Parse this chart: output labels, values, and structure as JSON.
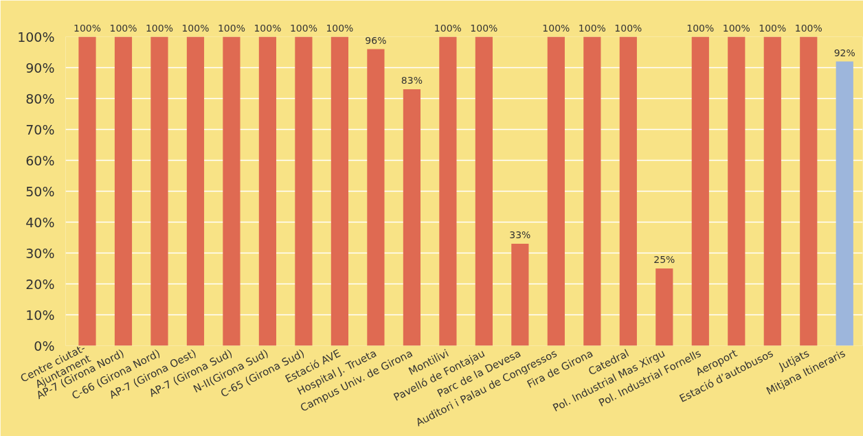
{
  "chart_data": {
    "type": "bar",
    "categories": [
      "Centre ciutat-\nAjuntament",
      "AP-7 (Girona Nord)",
      "C-66 (Girona Nord)",
      "AP-7 (Girona Oest)",
      "AP-7 (Girona Sud)",
      "N-II(Girona Sud)",
      "C-65 (Girona Sud)",
      "Estació AVE",
      "Hospital J. Trueta",
      "Campus Univ. de Girona",
      "Montilivi",
      "Pavelló de Fontajau",
      "Parc de la Devesa",
      "Auditori i Palau de Congressos",
      "Fira de Girona",
      "Catedral",
      "Pol. Industrial Mas Xirgu",
      "Pol. Industrial Fornells",
      "Aeroport",
      "Estació d’autobusos",
      "Jutjats",
      "Mitjana Itineraris"
    ],
    "values": [
      100,
      100,
      100,
      100,
      100,
      100,
      100,
      100,
      96,
      83,
      100,
      100,
      33,
      100,
      100,
      100,
      25,
      100,
      100,
      100,
      100,
      92
    ],
    "colors": [
      "#df6a52",
      "#df6a52",
      "#df6a52",
      "#df6a52",
      "#df6a52",
      "#df6a52",
      "#df6a52",
      "#df6a52",
      "#df6a52",
      "#df6a52",
      "#df6a52",
      "#df6a52",
      "#df6a52",
      "#df6a52",
      "#df6a52",
      "#df6a52",
      "#df6a52",
      "#df6a52",
      "#df6a52",
      "#df6a52",
      "#df6a52",
      "#9db6dc"
    ],
    "value_labels": [
      "100%",
      "100%",
      "100%",
      "100%",
      "100%",
      "100%",
      "100%",
      "100%",
      "96%",
      "83%",
      "100%",
      "100%",
      "33%",
      "100%",
      "100%",
      "100%",
      "25%",
      "100%",
      "100%",
      "100%",
      "100%",
      "92%"
    ],
    "ylim": [
      0,
      100
    ],
    "yticks": [
      {
        "value": 0,
        "label": "0%"
      },
      {
        "value": 10,
        "label": "10%"
      },
      {
        "value": 20,
        "label": "20%"
      },
      {
        "value": 30,
        "label": "30%"
      },
      {
        "value": 40,
        "label": "40%"
      },
      {
        "value": 50,
        "label": "50%"
      },
      {
        "value": 60,
        "label": "60%"
      },
      {
        "value": 70,
        "label": "70%"
      },
      {
        "value": 80,
        "label": "80%"
      },
      {
        "value": 90,
        "label": "90%"
      },
      {
        "value": 100,
        "label": "100%"
      }
    ],
    "grid": "y"
  }
}
